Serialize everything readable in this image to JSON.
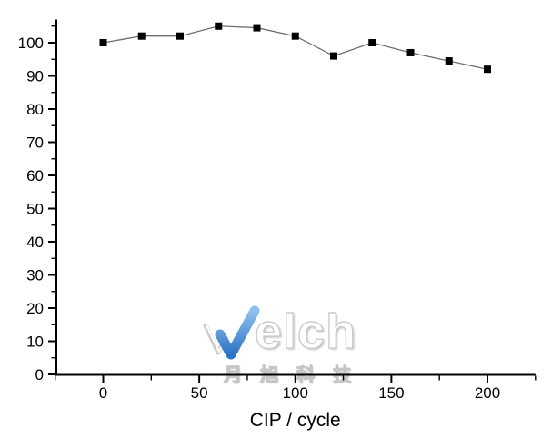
{
  "chart_data": {
    "type": "line",
    "title": "",
    "xlabel": "CIP / cycle",
    "ylabel": "",
    "x": [
      0,
      20,
      40,
      60,
      80,
      100,
      120,
      140,
      160,
      180,
      200
    ],
    "series": [
      {
        "name": "",
        "values": [
          100,
          102,
          102,
          105,
          104.5,
          102,
          96,
          100,
          97,
          94.5,
          92
        ]
      }
    ],
    "xlim": [
      -25,
      225
    ],
    "ylim": [
      0,
      107
    ],
    "x_major_ticks": [
      0,
      50,
      100,
      150,
      200
    ],
    "x_minor_ticks": [
      -25,
      25,
      75,
      125,
      175,
      225
    ],
    "y_major_ticks": [
      0,
      10,
      20,
      30,
      40,
      50,
      60,
      70,
      80,
      90,
      100
    ],
    "y_minor_ticks": [
      5,
      15,
      25,
      35,
      45,
      55,
      65,
      75,
      85,
      95,
      105
    ],
    "grid": false,
    "legend": "none",
    "marker": "filled-square",
    "colors": {
      "marker": "#000000",
      "line": "#6e6e6e",
      "axis": "#000000",
      "text": "#000000"
    }
  },
  "watermark": {
    "brand": "Welch",
    "brand_letters": "elch",
    "subtitle": "月旭科技",
    "check_color_top": "#8fc0ee",
    "check_color_bottom": "#2e74c6",
    "w_stroke_color": "#c9c9c9"
  }
}
